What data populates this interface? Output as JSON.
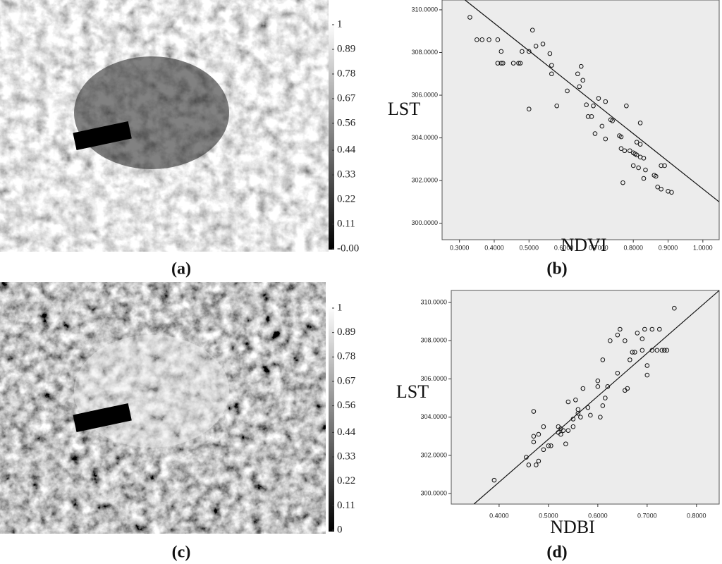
{
  "chart_data": [
    {
      "type": "image",
      "label": "(a)",
      "clim": [
        0,
        1
      ],
      "colorbar_ticks": [
        1,
        0.89,
        0.78,
        0.67,
        0.56,
        0.44,
        0.33,
        0.22,
        0.11,
        {
          "value": 0,
          "label": "-0.00"
        }
      ]
    },
    {
      "type": "scatter",
      "label": "(b)",
      "xlabel": "NDVI",
      "ylabel": "LST",
      "xlim": [
        0.25,
        1.047
      ],
      "ylim": [
        299.23,
        310.46
      ],
      "xticks": [
        {
          "value": 0.3,
          "label": "0.3000"
        },
        {
          "value": 0.4,
          "label": "0.4000"
        },
        {
          "value": 0.5,
          "label": "0.5000"
        },
        {
          "value": 0.6,
          "label": "0.6000"
        },
        {
          "value": 0.7,
          "label": "0.7000"
        },
        {
          "value": 0.8,
          "label": "0.8000"
        },
        {
          "value": 0.9,
          "label": "0.9000"
        },
        {
          "value": 1.0,
          "label": "1.0000"
        }
      ],
      "yticks": [
        {
          "value": 300,
          "label": "300.0000"
        },
        {
          "value": 302,
          "label": "302.0000"
        },
        {
          "value": 304,
          "label": "304.0000"
        },
        {
          "value": 306,
          "label": "306.0000"
        },
        {
          "value": 308,
          "label": "308.0000"
        },
        {
          "value": 310,
          "label": "310.0000"
        }
      ],
      "x": [
        0.33,
        0.35,
        0.365,
        0.385,
        0.41,
        0.42,
        0.41,
        0.42,
        0.425,
        0.455,
        0.47,
        0.475,
        0.48,
        0.5,
        0.51,
        0.52,
        0.54,
        0.56,
        0.565,
        0.565,
        0.5,
        0.58,
        0.61,
        0.64,
        0.65,
        0.645,
        0.655,
        0.665,
        0.67,
        0.68,
        0.685,
        0.69,
        0.7,
        0.72,
        0.71,
        0.72,
        0.735,
        0.74,
        0.76,
        0.765,
        0.765,
        0.775,
        0.79,
        0.8,
        0.805,
        0.81,
        0.82,
        0.83,
        0.78,
        0.81,
        0.82,
        0.82,
        0.8,
        0.815,
        0.83,
        0.77,
        0.835,
        0.86,
        0.865,
        0.88,
        0.89,
        0.87,
        0.88,
        0.9,
        0.91
      ],
      "y": [
        309.65,
        308.6,
        308.6,
        308.6,
        308.6,
        308.05,
        307.5,
        307.5,
        307.5,
        307.5,
        307.5,
        307.5,
        308.05,
        308.05,
        309.05,
        308.3,
        308.4,
        307.95,
        307.0,
        307.4,
        305.35,
        305.5,
        306.2,
        307.0,
        307.35,
        306.4,
        306.7,
        305.55,
        305.0,
        305.0,
        305.5,
        304.2,
        305.85,
        305.7,
        304.55,
        303.95,
        304.85,
        304.8,
        304.1,
        304.05,
        303.5,
        303.4,
        303.4,
        303.3,
        303.25,
        303.2,
        303.1,
        303.05,
        305.5,
        303.8,
        303.7,
        304.7,
        302.7,
        302.6,
        302.1,
        301.9,
        302.5,
        302.25,
        302.2,
        302.7,
        302.7,
        301.7,
        301.6,
        301.5,
        301.45
      ],
      "fit_line": {
        "x": [
          0.316,
          1.047
        ],
        "y": [
          310.46,
          301.0
        ]
      },
      "background": "#ececec"
    },
    {
      "type": "image",
      "label": "(c)",
      "clim": [
        0,
        1
      ],
      "colorbar_ticks": [
        1,
        0.89,
        0.78,
        0.67,
        0.56,
        0.44,
        0.33,
        0.22,
        0.11,
        0
      ]
    },
    {
      "type": "scatter",
      "label": "(d)",
      "xlabel": "NDBI",
      "ylabel": "LST",
      "xlim": [
        0.303,
        0.846
      ],
      "ylim": [
        299.45,
        310.63
      ],
      "xticks": [
        {
          "value": 0.4,
          "label": "0.4000"
        },
        {
          "value": 0.5,
          "label": "0.5000"
        },
        {
          "value": 0.6,
          "label": "0.6000"
        },
        {
          "value": 0.7,
          "label": "0.7000"
        },
        {
          "value": 0.8,
          "label": "0.8000"
        }
      ],
      "yticks": [
        {
          "value": 300,
          "label": "300.0000"
        },
        {
          "value": 302,
          "label": "302.0000"
        },
        {
          "value": 304,
          "label": "304.0000"
        },
        {
          "value": 306,
          "label": "306.0000"
        },
        {
          "value": 308,
          "label": "308.0000"
        },
        {
          "value": 310,
          "label": "310.0000"
        }
      ],
      "x": [
        0.39,
        0.455,
        0.46,
        0.47,
        0.475,
        0.48,
        0.47,
        0.48,
        0.49,
        0.49,
        0.5,
        0.505,
        0.47,
        0.52,
        0.52,
        0.525,
        0.525,
        0.53,
        0.535,
        0.54,
        0.54,
        0.55,
        0.55,
        0.555,
        0.56,
        0.56,
        0.565,
        0.57,
        0.58,
        0.585,
        0.6,
        0.6,
        0.605,
        0.61,
        0.61,
        0.615,
        0.62,
        0.625,
        0.64,
        0.64,
        0.645,
        0.655,
        0.655,
        0.66,
        0.665,
        0.67,
        0.675,
        0.68,
        0.69,
        0.69,
        0.695,
        0.7,
        0.7,
        0.71,
        0.71,
        0.72,
        0.725,
        0.73,
        0.735,
        0.74,
        0.755
      ],
      "y": [
        300.7,
        301.9,
        301.5,
        302.7,
        301.5,
        301.7,
        303.0,
        303.1,
        303.5,
        302.3,
        302.5,
        302.5,
        304.3,
        303.2,
        303.5,
        303.4,
        303.1,
        303.3,
        302.6,
        303.3,
        304.8,
        303.5,
        303.9,
        304.9,
        304.2,
        304.4,
        304.0,
        305.5,
        304.5,
        304.1,
        305.9,
        305.6,
        304.0,
        304.6,
        307.0,
        305.0,
        305.6,
        308.0,
        306.3,
        308.3,
        308.6,
        308.0,
        305.4,
        305.5,
        307.0,
        307.4,
        307.4,
        308.4,
        307.5,
        308.1,
        308.6,
        306.7,
        306.2,
        307.5,
        308.6,
        307.5,
        308.6,
        307.5,
        307.5,
        307.5,
        309.7
      ],
      "fit_line": {
        "x": [
          0.349,
          0.846
        ],
        "y": [
          299.45,
          310.63
        ]
      },
      "background": "#ececec"
    }
  ]
}
